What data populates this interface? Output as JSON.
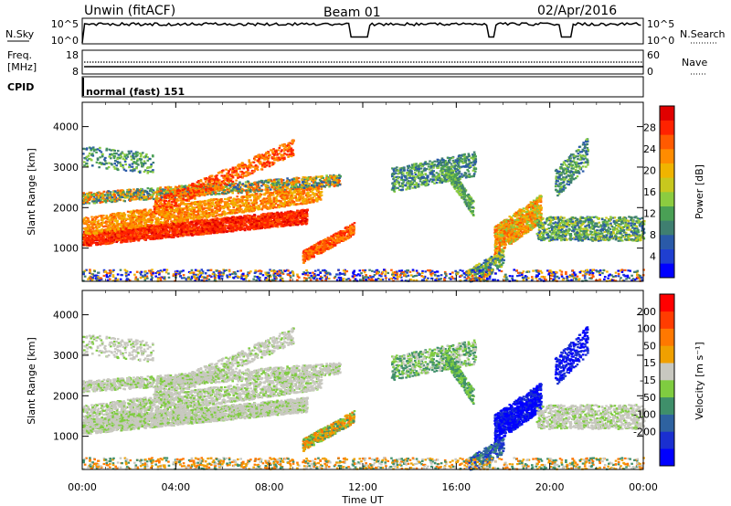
{
  "header": {
    "station": "Unwin (fitACF)",
    "beam": "Beam 01",
    "date": "02/Apr/2016"
  },
  "nsky_panel": {
    "label": "N.Sky",
    "right_label": "N.Search",
    "left_ticks": [
      "10^5",
      "10^0"
    ],
    "right_ticks": [
      "10^5",
      "10^0"
    ]
  },
  "freq_panel": {
    "label_line1": "Freq.",
    "label_line2": "[MHz]",
    "right_label": "Nave",
    "left_ticks": [
      "18",
      "8"
    ],
    "right_ticks": [
      "60",
      "0"
    ]
  },
  "cpid_panel": {
    "label": "CPID",
    "mode_text": "normal (fast) 151"
  },
  "xaxis": {
    "title": "Time UT",
    "ticks": [
      "00:00",
      "04:00",
      "08:00",
      "12:00",
      "16:00",
      "20:00",
      "00:00"
    ],
    "range_hours": [
      0,
      24
    ]
  },
  "chart_data": [
    {
      "type": "heatmap",
      "ylabel": "Slant Range [km]",
      "yticks": [
        "1000",
        "2000",
        "3000",
        "4000"
      ],
      "ylim": [
        180,
        4600
      ],
      "colorbar": {
        "label": "Power [dB]",
        "ticks": [
          "4",
          "8",
          "12",
          "16",
          "20",
          "24",
          "28"
        ],
        "range": [
          0,
          32
        ],
        "colors": [
          "#0000ff",
          "#1f3fd0",
          "#2a5aa8",
          "#3f7f70",
          "#4aa055",
          "#8ccc40",
          "#c8c81e",
          "#f0b400",
          "#ff8c00",
          "#ff5a00",
          "#ff2200",
          "#e00000"
        ]
      }
    },
    {
      "type": "heatmap",
      "ylabel": "Slant Range [km]",
      "yticks": [
        "1000",
        "2000",
        "3000",
        "4000"
      ],
      "ylim": [
        180,
        4600
      ],
      "colorbar": {
        "label": "Velocity [m s⁻¹]",
        "ticks": [
          "200",
          "100",
          "50",
          "15",
          "-15",
          "-50",
          "-100",
          "-200"
        ],
        "range": [
          -250,
          250
        ],
        "colors": [
          "#0000ff",
          "#1a2fd0",
          "#2e62a0",
          "#3f8f6a",
          "#7fcc40",
          "#c8c8c0",
          "#f0a000",
          "#ff7800",
          "#ff3c00",
          "#ff0000"
        ]
      }
    }
  ]
}
